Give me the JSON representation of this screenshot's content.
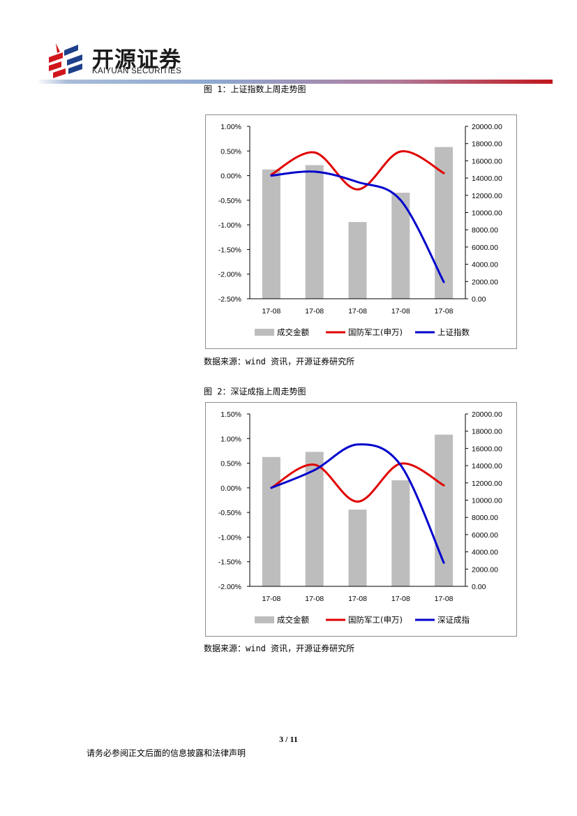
{
  "header": {
    "logo_cn": "开源证券",
    "logo_en": "KAIYUAN SECURITIES"
  },
  "figures": [
    {
      "caption": "图 1：上证指数上周走势图",
      "source": "数据来源：wind 资讯，开源证券研究所"
    },
    {
      "caption": "图 2：深证成指上周走势图",
      "source": "数据来源：wind 资讯，开源证券研究所"
    }
  ],
  "chart_data": [
    {
      "type": "bar",
      "categories": [
        "17-08",
        "17-08",
        "17-08",
        "17-08",
        "17-08"
      ],
      "left_axis": {
        "min": -2.5,
        "max": 1.0,
        "step": 0.5,
        "ticks": [
          "1.00%",
          "0.50%",
          "0.00%",
          "-0.50%",
          "-1.00%",
          "-1.50%",
          "-2.00%",
          "-2.50%"
        ]
      },
      "right_axis": {
        "min": 0,
        "max": 20000,
        "step": 2000,
        "ticks": [
          "20000.00",
          "18000.00",
          "16000.00",
          "14000.00",
          "12000.00",
          "10000.00",
          "8000.00",
          "6000.00",
          "4000.00",
          "2000.00",
          "0.00"
        ]
      },
      "series": [
        {
          "name": "成交金额",
          "kind": "bar",
          "axis": "right",
          "color": "#bdbdbd",
          "values": [
            15000,
            15500,
            8900,
            12300,
            17600
          ]
        },
        {
          "name": "国防军工(申万)",
          "kind": "line",
          "axis": "left",
          "color": "#e00000",
          "values": [
            0.02,
            0.47,
            -0.28,
            0.49,
            0.05
          ]
        },
        {
          "name": "上证指数",
          "kind": "line",
          "axis": "left",
          "color": "#0000cc",
          "values": [
            0.0,
            0.08,
            -0.13,
            -0.5,
            -2.16
          ]
        }
      ],
      "legend": "bottom"
    },
    {
      "type": "bar",
      "categories": [
        "17-08",
        "17-08",
        "17-08",
        "17-08",
        "17-08"
      ],
      "left_axis": {
        "min": -2.0,
        "max": 1.5,
        "step": 0.5,
        "ticks": [
          "1.50%",
          "1.00%",
          "0.50%",
          "0.00%",
          "-0.50%",
          "-1.00%",
          "-1.50%",
          "-2.00%"
        ]
      },
      "right_axis": {
        "min": 0,
        "max": 20000,
        "step": 2000,
        "ticks": [
          "20000.00",
          "18000.00",
          "16000.00",
          "14000.00",
          "12000.00",
          "10000.00",
          "8000.00",
          "6000.00",
          "4000.00",
          "2000.00",
          "0.00"
        ]
      },
      "series": [
        {
          "name": "成交金额",
          "kind": "bar",
          "axis": "right",
          "color": "#bdbdbd",
          "values": [
            15000,
            15600,
            8900,
            12300,
            17600
          ]
        },
        {
          "name": "国防军工(申万)",
          "kind": "line",
          "axis": "left",
          "color": "#e00000",
          "values": [
            0.0,
            0.47,
            -0.28,
            0.49,
            0.05
          ]
        },
        {
          "name": "深证成指",
          "kind": "line",
          "axis": "left",
          "color": "#0000cc",
          "values": [
            0.0,
            0.36,
            0.88,
            0.46,
            -1.52
          ]
        }
      ],
      "legend": "bottom"
    }
  ],
  "footer": {
    "page": "3 / 11",
    "disclaimer": "请务必参阅正文后面的信息披露和法律声明"
  }
}
